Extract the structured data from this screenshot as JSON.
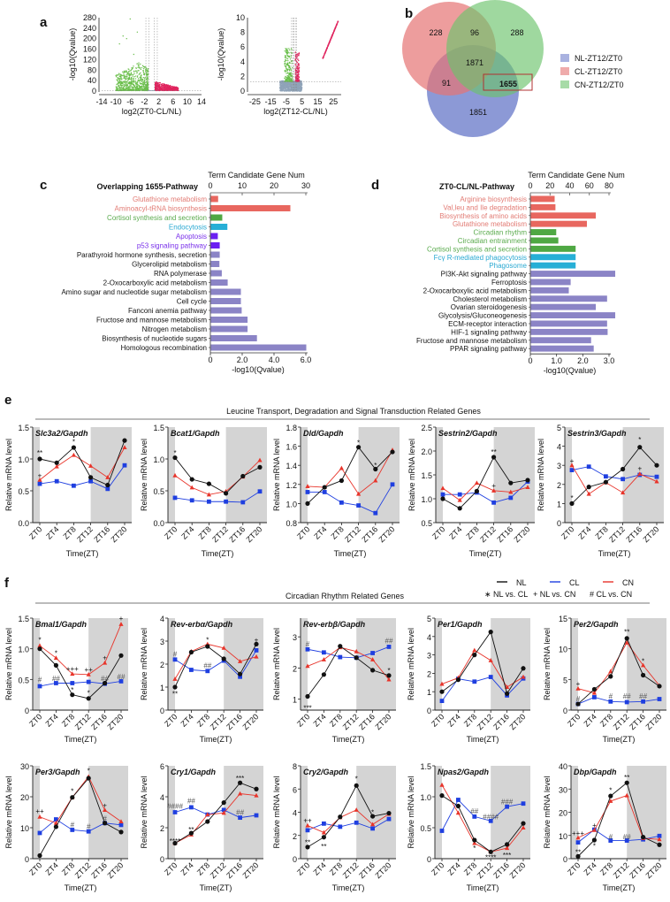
{
  "panel_labels": [
    "a",
    "b",
    "c",
    "d",
    "e",
    "f"
  ],
  "chart_data": [
    {
      "id": "volcano-1",
      "type": "scatter",
      "xlabel": "log2(ZT0-CL/NL)",
      "ylabel": "-log10(Qvalue)",
      "xlim": [
        -14,
        14
      ],
      "ylim": [
        0,
        280
      ],
      "xticks": [
        "-14",
        "-10",
        "-6",
        "-2",
        "2",
        "6",
        "10",
        "14"
      ],
      "yticks": [
        "0",
        "40",
        "80",
        "120",
        "160",
        "200",
        "240",
        "280"
      ],
      "colors": {
        "down": "#6abf4b",
        "up": "#e0245e",
        "ns": "#8fa3b8"
      },
      "grid": false
    },
    {
      "id": "volcano-2",
      "type": "scatter",
      "xlabel": "log2(ZT12-CL/NL)",
      "ylabel": "-log10(Qvalue)",
      "xlim": [
        -28,
        30
      ],
      "ylim": [
        0,
        10
      ],
      "xticks": [
        "-25",
        "-15",
        "-5",
        "5",
        "15",
        "25"
      ],
      "yticks": [
        "0",
        "2",
        "4",
        "6",
        "8",
        "10"
      ],
      "colors": {
        "down": "#6abf4b",
        "up": "#e0245e",
        "ns": "#8fa3b8"
      },
      "grid": false
    },
    {
      "id": "venn",
      "type": "venn",
      "sets": [
        {
          "name": "NL-ZT12/ZT0",
          "color": "#6f7fcc"
        },
        {
          "name": "CL-ZT12/ZT0",
          "color": "#e57373"
        },
        {
          "name": "CN-ZT12/ZT0",
          "color": "#6cc36c"
        }
      ],
      "regions": {
        "CL_only": "228",
        "CL_CN": "96",
        "CN_only": "288",
        "all": "1871",
        "CL_NL": "91",
        "NL_CN": "1655",
        "NL_only": "1851"
      },
      "highlight": "1655"
    },
    {
      "id": "pathway-c",
      "type": "bar",
      "orientation": "horizontal",
      "title": "Overlapping 1655-Pathway",
      "top_axis_label": "Term Candidate Gene Num",
      "top_ticks": [
        "0",
        "10",
        "20",
        "30"
      ],
      "xlabel": "-log10(Qvalue)",
      "xticks": [
        "0",
        "2.0",
        "4.0",
        "6.0"
      ],
      "xlim": [
        0,
        6
      ],
      "categories": [
        "Glutathione metabolism",
        "Aminoacyl-tRNA biosynthesis",
        "Cortisol synthesis and secretion",
        "Endocytosis",
        "Apoptosis",
        "p53 signaling pathway",
        "Parathyroid hormone synthesis, secretion",
        "Glycerolipid metabolism",
        "RNA polymerase",
        "2-Oxocarboxylic acid metabolism",
        "Amino sugar and nucleotide sugar metabolism",
        "Cell cycle",
        "Fanconi anemia pathway",
        "Fructose and mannose metabolism",
        "Nitrogen metabolism",
        "Biosynthesis of nucleotide sugars",
        "Homologous recombination"
      ],
      "values": [
        0.46,
        5.0,
        0.72,
        1.04,
        0.44,
        0.56,
        0.56,
        0.54,
        0.69,
        1.06,
        1.89,
        1.89,
        1.94,
        2.31,
        2.31,
        2.9,
        6.0
      ],
      "groups": [
        "red",
        "red",
        "green",
        "cyan",
        "violet",
        "violet",
        "slate",
        "slate",
        "slate",
        "slate",
        "slate",
        "slate",
        "slate",
        "slate",
        "slate",
        "slate",
        "slate"
      ]
    },
    {
      "id": "pathway-d",
      "type": "bar",
      "orientation": "horizontal",
      "title": "ZT0-CL/NL-Pathway",
      "top_axis_label": "Term Candidate Gene Num",
      "top_ticks": [
        "0",
        "20",
        "40",
        "60",
        "80"
      ],
      "xlabel": "-log10(Qvalue)",
      "xticks": [
        "0",
        "1.0",
        "2.0",
        "3.0"
      ],
      "xlim": [
        0,
        3.0
      ],
      "categories": [
        "Arginine biosynthesis",
        "Val,leu and Ile degradation",
        "Biosynthesis of amino acids",
        "Glutathione metabolism",
        "Circadian rhythm",
        "Circadian entrainment",
        "Cortisol synthesis and secretion",
        "Fcγ R-mediated phagocytosis",
        "Phagosome",
        "PI3K-Akt signaling pathway",
        "Ferroptosis",
        "2-Oxocarboxylic acid metabolism",
        "Cholesterol metabolism",
        "Ovarian steroidogenesis",
        "Glycolysis/Gluconeogenesis",
        "ECM-receptor interaction",
        "HIF-1 signaling pathway",
        "Fructose and mannose metabolism",
        "PPAR signaling pathway"
      ],
      "values": [
        0.91,
        0.94,
        2.48,
        2.14,
        0.97,
        1.05,
        1.71,
        1.71,
        1.71,
        3.22,
        1.52,
        1.45,
        2.91,
        2.48,
        3.22,
        2.91,
        2.93,
        2.3,
        2.4
      ],
      "groups": [
        "red",
        "red",
        "red",
        "red",
        "green",
        "green",
        "green",
        "cyan",
        "cyan",
        "slate",
        "slate",
        "slate",
        "slate",
        "slate",
        "slate",
        "slate",
        "slate",
        "slate",
        "slate"
      ]
    }
  ],
  "group_colors": {
    "red": {
      "bar": "#e8675f",
      "label": "#e27b74"
    },
    "green": {
      "bar": "#4fa843",
      "label": "#5bab4e"
    },
    "cyan": {
      "bar": "#27afd6",
      "label": "#2aa9d2"
    },
    "violet": {
      "bar": "#6b1ff2",
      "label": "#7a32ea"
    },
    "slate": {
      "bar": "#8b84c6",
      "label": "#111111"
    }
  },
  "panel_e": {
    "title": "Leucine Transport, Degradation and Signal Transduction Related Genes"
  },
  "panel_f": {
    "title": "Circadian Rhythm Related Genes",
    "legend": {
      "series": [
        "NL",
        "CL",
        "CN"
      ],
      "stats": [
        "∗ NL vs. CL",
        "+ NL vs. CN",
        "# CL vs. CN"
      ]
    }
  },
  "line_common": {
    "type": "line",
    "x": [
      "ZT0",
      "ZT4",
      "ZT8",
      "ZT12",
      "ZT16",
      "ZT20"
    ],
    "xlabel": "Time(ZT)",
    "ylabel": "Relative mRNA level",
    "series_style": {
      "NL": {
        "color": "#111111",
        "marker": "circle"
      },
      "CL": {
        "color": "#1f3fe0",
        "marker": "square"
      },
      "CN": {
        "color": "#e8342a",
        "marker": "triangle"
      }
    },
    "dark_phase": "ZT12-ZT24 shaded grey"
  },
  "line_charts": [
    {
      "title": "Slc3a2/Gapdh",
      "ylim": [
        0,
        1.5
      ],
      "yticks": [
        "0.0",
        "0.5",
        "1.0",
        "1.5"
      ],
      "NL": [
        1.0,
        0.94,
        1.18,
        0.71,
        0.59,
        1.29
      ],
      "CL": [
        0.61,
        0.65,
        0.58,
        0.65,
        0.53,
        0.9
      ],
      "CN": [
        0.67,
        0.88,
        1.06,
        0.89,
        0.71,
        1.18
      ],
      "annotations": [
        [
          0,
          1.1,
          "**"
        ],
        [
          2,
          1.27,
          "*"
        ],
        [
          0,
          0.74,
          "+"
        ]
      ]
    },
    {
      "title": "Bcat1/Gapdh",
      "ylim": [
        0,
        1.5
      ],
      "yticks": [
        "0.0",
        "0.5",
        "1.0",
        "1.5"
      ],
      "NL": [
        1.02,
        0.68,
        0.61,
        0.46,
        0.73,
        0.87
      ],
      "CL": [
        0.39,
        0.35,
        0.33,
        0.33,
        0.32,
        0.49
      ],
      "CN": [
        0.74,
        0.55,
        0.44,
        0.49,
        0.72,
        0.98
      ],
      "annotations": [
        [
          0,
          1.1,
          "*"
        ]
      ]
    },
    {
      "title": "Dld/Gapdh",
      "ylim": [
        0.8,
        1.8
      ],
      "yticks": [
        "0.8",
        "1.0",
        "1.2",
        "1.4",
        "1.6",
        "1.8"
      ],
      "NL": [
        1.0,
        1.17,
        1.24,
        1.59,
        1.36,
        1.54
      ],
      "CL": [
        1.12,
        1.12,
        1.01,
        0.98,
        0.9,
        1.2
      ],
      "CN": [
        1.18,
        1.17,
        1.37,
        1.1,
        1.24,
        1.56
      ],
      "annotations": [
        [
          3,
          1.64,
          "*"
        ],
        [
          4,
          1.4,
          "*"
        ]
      ]
    },
    {
      "title": "Sestrin2/Gapdh",
      "ylim": [
        0.5,
        2.5
      ],
      "yticks": [
        "0.5",
        "1.0",
        "1.5",
        "2.0",
        "2.5"
      ],
      "NL": [
        1.0,
        0.8,
        1.16,
        1.87,
        1.33,
        1.39
      ],
      "CL": [
        1.09,
        1.09,
        1.13,
        0.92,
        1.02,
        1.36
      ],
      "CN": [
        1.22,
        0.97,
        1.33,
        1.17,
        1.14,
        1.24
      ],
      "annotations": [
        [
          3,
          1.98,
          "**"
        ],
        [
          3,
          1.28,
          "+"
        ]
      ]
    },
    {
      "title": "Sestrin3/Gapdh",
      "ylim": [
        0,
        5
      ],
      "yticks": [
        "0",
        "1",
        "2",
        "3",
        "4",
        "5"
      ],
      "NL": [
        1.0,
        1.87,
        2.12,
        2.8,
        3.95,
        3.0
      ],
      "CL": [
        2.75,
        2.93,
        2.42,
        2.28,
        2.5,
        2.4
      ],
      "CN": [
        3.0,
        1.5,
        2.1,
        1.57,
        2.55,
        2.15
      ],
      "annotations": [
        [
          0,
          1.3,
          "*"
        ],
        [
          0,
          3.25,
          "+"
        ],
        [
          4,
          4.35,
          "*"
        ],
        [
          4,
          2.85,
          "+"
        ]
      ]
    },
    {
      "title": "Bmal1/Gapdh",
      "ylim": [
        0,
        1.5
      ],
      "yticks": [
        "0",
        "0.5",
        "1.0",
        "1.5"
      ],
      "NL": [
        1.0,
        0.73,
        0.25,
        0.19,
        0.44,
        0.89
      ],
      "CL": [
        0.39,
        0.44,
        0.44,
        0.46,
        0.43,
        0.47
      ],
      "CN": [
        1.05,
        0.85,
        0.59,
        0.58,
        0.77,
        1.4
      ],
      "annotations": [
        [
          0,
          1.15,
          "*"
        ],
        [
          0,
          0.5,
          "#"
        ],
        [
          1,
          0.93,
          "*"
        ],
        [
          1,
          0.52,
          "##"
        ],
        [
          2,
          0.68,
          "+++"
        ],
        [
          2,
          0.33,
          "*"
        ],
        [
          3,
          0.66,
          "++"
        ],
        [
          3,
          0.28,
          "*"
        ],
        [
          4,
          0.86,
          "+"
        ],
        [
          4,
          0.52,
          "##"
        ],
        [
          5,
          1.5,
          "+"
        ],
        [
          5,
          0.55,
          "##"
        ]
      ]
    },
    {
      "title": "Rev-erbα/Gapdh",
      "ylim": [
        0,
        4
      ],
      "yticks": [
        "0",
        "1",
        "2",
        "3",
        "4"
      ],
      "NL": [
        1.0,
        2.52,
        2.77,
        2.23,
        1.57,
        2.87
      ],
      "CL": [
        2.2,
        1.75,
        1.7,
        2.15,
        1.45,
        2.6
      ],
      "CN": [
        1.35,
        2.55,
        2.87,
        2.7,
        2.12,
        2.32
      ],
      "annotations": [
        [
          0,
          2.45,
          "#"
        ],
        [
          0,
          0.72,
          "**"
        ],
        [
          2,
          3.05,
          "*"
        ],
        [
          2,
          1.95,
          "##"
        ],
        [
          5,
          3.05,
          "+"
        ]
      ]
    },
    {
      "title": "Rev-erbβ/Gapdh",
      "ylim": [
        0.65,
        3.6
      ],
      "yticks": [
        "1",
        "2",
        "3"
      ],
      "NL": [
        1.09,
        1.79,
        2.7,
        2.33,
        1.93,
        1.76
      ],
      "CL": [
        2.6,
        2.5,
        2.35,
        2.33,
        2.48,
        2.68
      ],
      "CN": [
        2.06,
        2.27,
        2.66,
        2.53,
        2.27,
        1.63
      ],
      "annotations": [
        [
          0,
          2.78,
          "#"
        ],
        [
          0,
          0.72,
          "***"
        ],
        [
          5,
          2.88,
          "##"
        ],
        [
          5,
          1.93,
          "*"
        ]
      ]
    },
    {
      "title": "Per1/Gapdh",
      "ylim": [
        0,
        5
      ],
      "yticks": [
        "0",
        "1",
        "2",
        "3",
        "4",
        "5"
      ],
      "NL": [
        1.0,
        1.65,
        3.0,
        4.25,
        0.9,
        2.27
      ],
      "CL": [
        0.5,
        1.7,
        1.55,
        1.8,
        0.8,
        1.72
      ],
      "CN": [
        1.42,
        1.75,
        3.25,
        2.7,
        1.25,
        1.8
      ],
      "annotations": []
    },
    {
      "title": "Per2/Gapdh",
      "ylim": [
        0,
        15
      ],
      "yticks": [
        "0",
        "5",
        "10",
        "15"
      ],
      "NL": [
        1.0,
        3.4,
        5.5,
        11.7,
        5.7,
        3.9
      ],
      "CL": [
        1.0,
        2.1,
        1.4,
        1.3,
        1.4,
        1.8
      ],
      "CN": [
        3.5,
        2.8,
        6.3,
        11.0,
        7.3,
        4.0
      ],
      "annotations": [
        [
          0,
          4.3,
          "+"
        ],
        [
          0,
          1.9,
          "#"
        ],
        [
          2,
          2.3,
          "#"
        ],
        [
          3,
          12.8,
          "**"
        ],
        [
          3,
          2.3,
          "##"
        ],
        [
          4,
          8.0,
          "*"
        ],
        [
          4,
          2.3,
          "##"
        ]
      ]
    },
    {
      "title": "Per3/Gapdh",
      "ylim": [
        0,
        30
      ],
      "yticks": [
        "0",
        "10",
        "20",
        "30"
      ],
      "NL": [
        1.0,
        10.3,
        19.8,
        26.0,
        11.5,
        8.6
      ],
      "CL": [
        8.3,
        12.7,
        9.3,
        8.8,
        11.5,
        10.9
      ],
      "CN": [
        13.5,
        11.5,
        19.8,
        26.5,
        15.7,
        12.0
      ],
      "annotations": [
        [
          0,
          15.5,
          "++"
        ],
        [
          2,
          21.8,
          "*"
        ],
        [
          2,
          11,
          "#"
        ],
        [
          3,
          28.5,
          "*"
        ],
        [
          3,
          10.5,
          "#"
        ],
        [
          4,
          17.3,
          "+"
        ],
        [
          4,
          13,
          "#"
        ]
      ]
    },
    {
      "title": "Cry1/Gapdh",
      "ylim": [
        0,
        6
      ],
      "yticks": [
        "0",
        "2",
        "4",
        "6"
      ],
      "NL": [
        1.0,
        1.65,
        2.4,
        3.62,
        4.9,
        4.5
      ],
      "CL": [
        3.0,
        3.32,
        2.85,
        3.15,
        2.65,
        2.8
      ],
      "CN": [
        1.0,
        1.55,
        2.85,
        2.95,
        4.2,
        4.08
      ],
      "annotations": [
        [
          0,
          3.4,
          "####"
        ],
        [
          0,
          1.15,
          "****"
        ],
        [
          1,
          3.75,
          "##"
        ],
        [
          1,
          1.9,
          "**"
        ],
        [
          4,
          5.2,
          "***"
        ],
        [
          4,
          3.0,
          "##"
        ]
      ]
    },
    {
      "title": "Cry2/Gapdh",
      "ylim": [
        0,
        8
      ],
      "yticks": [
        "0",
        "2",
        "4",
        "6",
        "8"
      ],
      "NL": [
        1.0,
        1.85,
        3.6,
        6.3,
        3.65,
        3.92
      ],
      "CL": [
        2.45,
        3.02,
        2.75,
        3.1,
        2.6,
        3.42
      ],
      "CN": [
        2.85,
        2.25,
        3.55,
        4.2,
        2.95,
        3.85
      ],
      "annotations": [
        [
          0,
          3.3,
          "++"
        ],
        [
          0,
          1.4,
          "**"
        ],
        [
          1,
          1.05,
          "**"
        ],
        [
          3,
          6.9,
          "*"
        ],
        [
          4,
          4.0,
          "*"
        ]
      ]
    },
    {
      "title": "Npas2/Gapdh",
      "ylim": [
        0,
        1.5
      ],
      "yticks": [
        "0",
        "0.5",
        "1.0",
        "1.5"
      ],
      "NL": [
        1.02,
        0.85,
        0.3,
        0.11,
        0.23,
        0.57
      ],
      "CL": [
        0.45,
        0.95,
        0.68,
        0.61,
        0.84,
        0.89
      ],
      "CN": [
        1.19,
        0.74,
        0.25,
        0.11,
        0.17,
        0.5
      ],
      "annotations": [
        [
          2,
          0.77,
          "##"
        ],
        [
          2,
          0.17,
          "*"
        ],
        [
          3,
          0.68,
          "####"
        ],
        [
          3,
          0.02,
          "****"
        ],
        [
          4,
          0.92,
          "###"
        ],
        [
          4,
          0.06,
          "***"
        ]
      ]
    },
    {
      "title": "Dbp/Gapdh",
      "ylim": [
        0,
        40
      ],
      "yticks": [
        "0",
        "10",
        "20",
        "30",
        "40"
      ],
      "NL": [
        1.0,
        8.0,
        27.0,
        32.7,
        9.3,
        6.0
      ],
      "CL": [
        7.0,
        12.5,
        7.8,
        7.8,
        8.3,
        9.8
      ],
      "CN": [
        9.0,
        12.3,
        24.8,
        27.2,
        8.8,
        8.3
      ],
      "annotations": [
        [
          0,
          11,
          "+++"
        ],
        [
          0,
          2.8,
          "**"
        ],
        [
          1,
          14.5,
          "+"
        ],
        [
          1,
          5.5,
          "*"
        ],
        [
          2,
          29.5,
          "*"
        ],
        [
          2,
          9.5,
          "#"
        ],
        [
          3,
          35,
          "**"
        ],
        [
          3,
          9.5,
          "##"
        ]
      ]
    }
  ]
}
